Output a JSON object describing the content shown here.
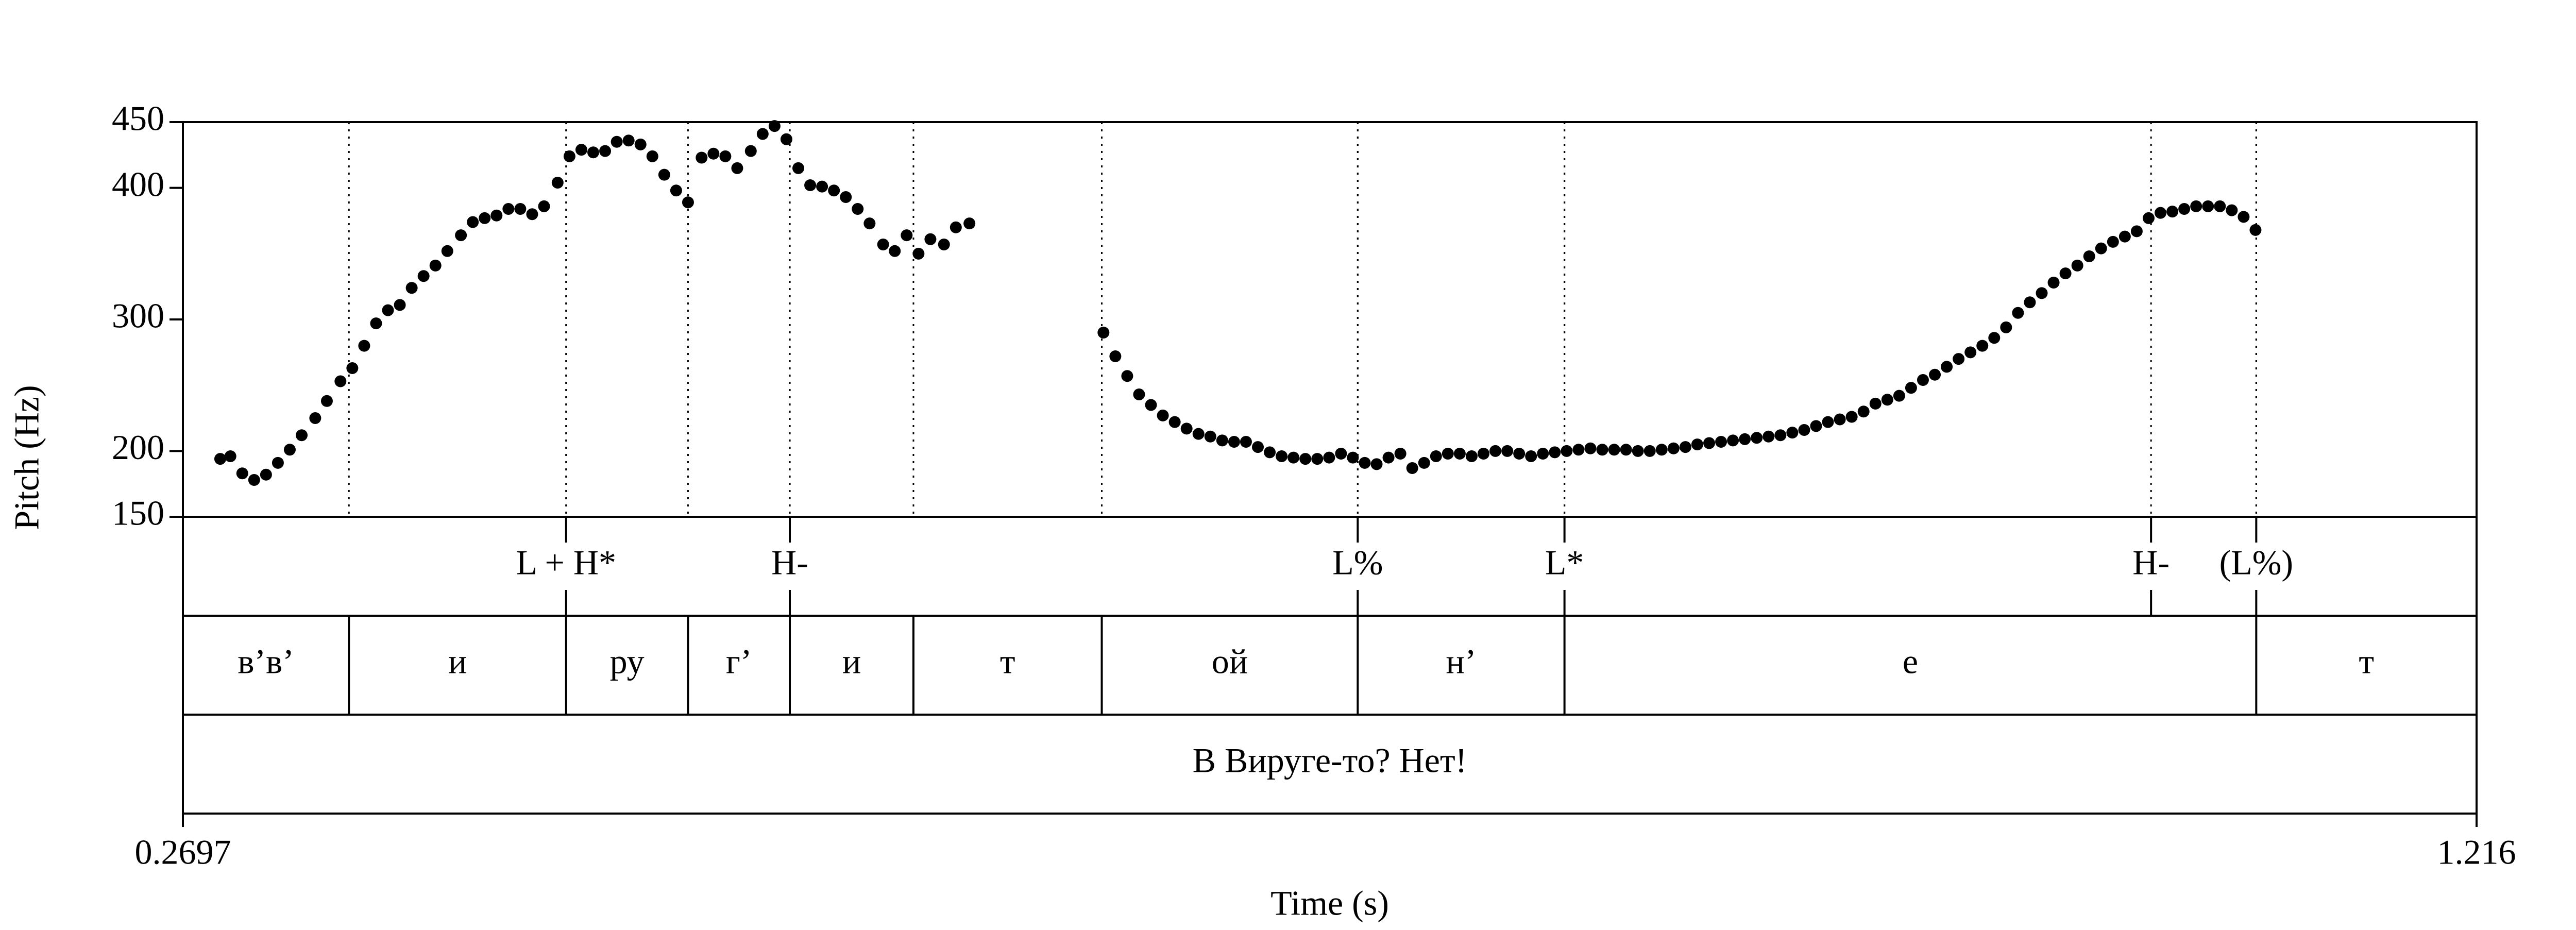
{
  "chart_data": {
    "type": "scatter",
    "y_label": "Pitch (Hz)",
    "x_label": "Time (s)",
    "xlim": [
      0.2697,
      1.216
    ],
    "xticks": [
      0.2697,
      1.216
    ],
    "ylim": [
      150,
      450
    ],
    "yticks": [
      150,
      200,
      300,
      400,
      450
    ],
    "series": [
      {
        "color": "#000000",
        "x": [
          0.2851,
          0.2893,
          0.2942,
          0.2991,
          0.304,
          0.3089,
          0.3138,
          0.3187,
          0.3243,
          0.3291,
          0.3347,
          0.3396,
          0.3445,
          0.3494,
          0.3543,
          0.3592,
          0.3641,
          0.369,
          0.3739,
          0.3788,
          0.3844,
          0.3893,
          0.3942,
          0.3991,
          0.404,
          0.4089,
          0.4138,
          0.4187,
          0.4243,
          0.4292,
          0.4341,
          0.439,
          0.4439,
          0.4487,
          0.4536,
          0.4585,
          0.4634,
          0.4683,
          0.4732,
          0.4781,
          0.4837,
          0.4886,
          0.4935,
          0.4984,
          0.504,
          0.5089,
          0.5138,
          0.5187,
          0.5236,
          0.5285,
          0.5334,
          0.5383,
          0.5432,
          0.5481,
          0.553,
          0.5586,
          0.5634,
          0.5683,
          0.5732,
          0.5781,
          0.5837,
          0.5886,
          0.5942,
          0.6495,
          0.6544,
          0.6593,
          0.6642,
          0.6691,
          0.674,
          0.6789,
          0.6838,
          0.6887,
          0.6936,
          0.6985,
          0.7034,
          0.7083,
          0.7132,
          0.7181,
          0.723,
          0.7279,
          0.7328,
          0.7377,
          0.7426,
          0.7475,
          0.7524,
          0.7573,
          0.7622,
          0.7671,
          0.772,
          0.7769,
          0.7818,
          0.7867,
          0.7916,
          0.7965,
          0.8014,
          0.8063,
          0.8112,
          0.8161,
          0.821,
          0.8259,
          0.8308,
          0.8357,
          0.8406,
          0.8455,
          0.8504,
          0.8553,
          0.8602,
          0.8651,
          0.87,
          0.8749,
          0.8798,
          0.8847,
          0.8896,
          0.8945,
          0.8994,
          0.9043,
          0.9092,
          0.9141,
          0.919,
          0.9239,
          0.9288,
          0.9337,
          0.9386,
          0.9435,
          0.9484,
          0.9533,
          0.9582,
          0.9631,
          0.968,
          0.9729,
          0.9778,
          0.9827,
          0.9876,
          0.9925,
          0.9974,
          1.0023,
          1.0072,
          1.0121,
          1.017,
          1.0219,
          1.0268,
          1.0317,
          1.0366,
          1.0415,
          1.0464,
          1.0513,
          1.0562,
          1.0611,
          1.066,
          1.0709,
          1.0758,
          1.0807,
          1.0856,
          1.0905,
          1.0954,
          1.1003,
          1.1052,
          1.1101,
          1.115,
          1.1199,
          1.1248
        ],
        "values": [
          194,
          196,
          183,
          178,
          182,
          191,
          201,
          212,
          225,
          238,
          253,
          263,
          280,
          297,
          307,
          311,
          324,
          333,
          341,
          352,
          364,
          374,
          377,
          379,
          384,
          384,
          380,
          386,
          404,
          424,
          429,
          427,
          428,
          435,
          436,
          433,
          424,
          410,
          398,
          389,
          423,
          426,
          424,
          415,
          428,
          441,
          447,
          437,
          415,
          402,
          401,
          398,
          393,
          384,
          373,
          357,
          352,
          364,
          350,
          361,
          357,
          370,
          373,
          290,
          272,
          257,
          243,
          235,
          227,
          222,
          217,
          213,
          211,
          208,
          207,
          207,
          203,
          199,
          196,
          195,
          194,
          194,
          195,
          198,
          195,
          191,
          190,
          195,
          198,
          187,
          191,
          196,
          198,
          198,
          196,
          198,
          200,
          200,
          198,
          196,
          198,
          199,
          200,
          201,
          202,
          201,
          201,
          201,
          200,
          200,
          201,
          202,
          203,
          205,
          206,
          207,
          208,
          209,
          210,
          211,
          212,
          214,
          216,
          219,
          222,
          224,
          226,
          230,
          236,
          239,
          242,
          248,
          254,
          258,
          264,
          270,
          275,
          280,
          286,
          294,
          305,
          313,
          320,
          328,
          335,
          341,
          348,
          354,
          359,
          363,
          367,
          377,
          381,
          382,
          384,
          386,
          386,
          386,
          383,
          378,
          368
        ]
      }
    ],
    "tiers": [
      {
        "tier_type": "point",
        "times": [
          0.4278,
          0.5201,
          0.7544,
          0.8397,
          1.0817,
          1.1251
        ],
        "labels": [
          "L + H*",
          "H-",
          "L%",
          "L*",
          "H-",
          "(L%)"
        ]
      },
      {
        "tier_type": "interval",
        "boundaries": [
          0.3382,
          0.4278,
          0.4781,
          0.5201,
          0.5711,
          0.6488,
          0.7544,
          0.8397,
          1.1251
        ],
        "labels": [
          "в’в’",
          "и",
          "ру",
          "г’",
          "и",
          "т",
          "ой",
          "н’",
          "е",
          "т"
        ]
      },
      {
        "tier_type": "interval",
        "boundaries": [],
        "labels": [
          "В Вируге-то? Нет!"
        ]
      }
    ]
  }
}
